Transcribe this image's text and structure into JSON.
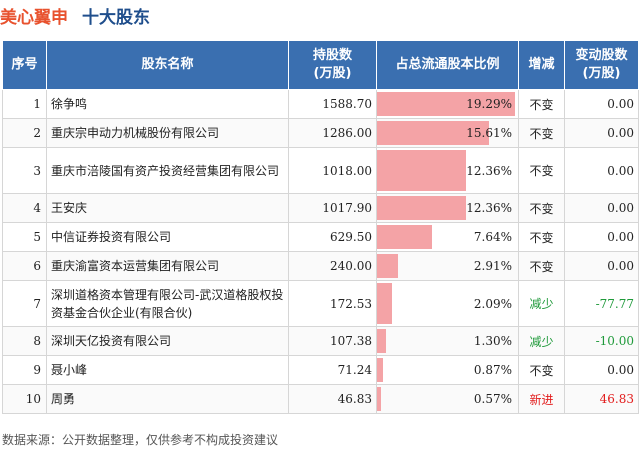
{
  "header": {
    "title": "美心翼申",
    "subtitle": "十大股东"
  },
  "columns": [
    "序号",
    "股东名称",
    "持股数\n(万股)",
    "占总流通股本比例",
    "增减",
    "变动股数\n(万股)"
  ],
  "rows": [
    {
      "idx": "1",
      "name": "徐争鸣",
      "shares": "1588.70",
      "ratio_label": "19.29%",
      "ratio": 19.29,
      "change": "不变",
      "delta": "0.00",
      "status": "same"
    },
    {
      "idx": "2",
      "name": "重庆宗申动力机械股份有限公司",
      "shares": "1286.00",
      "ratio_label": "15.61%",
      "ratio": 15.61,
      "change": "不变",
      "delta": "0.00",
      "status": "same"
    },
    {
      "idx": "3",
      "name": "重庆市涪陵国有资产投资经营集团有限公司",
      "shares": "1018.00",
      "ratio_label": "12.36%",
      "ratio": 12.36,
      "change": "不变",
      "delta": "0.00",
      "status": "same"
    },
    {
      "idx": "4",
      "name": "王安庆",
      "shares": "1017.90",
      "ratio_label": "12.36%",
      "ratio": 12.36,
      "change": "不变",
      "delta": "0.00",
      "status": "same"
    },
    {
      "idx": "5",
      "name": "中信证券投资有限公司",
      "shares": "629.50",
      "ratio_label": "7.64%",
      "ratio": 7.64,
      "change": "不变",
      "delta": "0.00",
      "status": "same"
    },
    {
      "idx": "6",
      "name": "重庆渝富资本运营集团有限公司",
      "shares": "240.00",
      "ratio_label": "2.91%",
      "ratio": 2.91,
      "change": "不变",
      "delta": "0.00",
      "status": "same"
    },
    {
      "idx": "7",
      "name": "深圳道格资本管理有限公司-武汉道格股权投资基金合伙企业(有限合伙)",
      "shares": "172.53",
      "ratio_label": "2.09%",
      "ratio": 2.09,
      "change": "减少",
      "delta": "-77.77",
      "status": "down"
    },
    {
      "idx": "8",
      "name": "深圳天亿投资有限公司",
      "shares": "107.38",
      "ratio_label": "1.30%",
      "ratio": 1.3,
      "change": "减少",
      "delta": "-10.00",
      "status": "down"
    },
    {
      "idx": "9",
      "name": "聂小峰",
      "shares": "71.24",
      "ratio_label": "0.87%",
      "ratio": 0.87,
      "change": "不变",
      "delta": "0.00",
      "status": "same"
    },
    {
      "idx": "10",
      "name": "周勇",
      "shares": "46.83",
      "ratio_label": "0.57%",
      "ratio": 0.57,
      "change": "新进",
      "delta": "46.83",
      "status": "new"
    }
  ],
  "ratio_max": 19.29,
  "colors": {
    "header_bg": "#3a6fb0",
    "bar": "#f4a3a6",
    "down": "#1f9a3a",
    "new": "#e21c1c",
    "title": "#e8522e",
    "subtitle": "#1f4e8c"
  },
  "footer": "数据来源：公开数据整理，仅供参考不构成投资建议"
}
